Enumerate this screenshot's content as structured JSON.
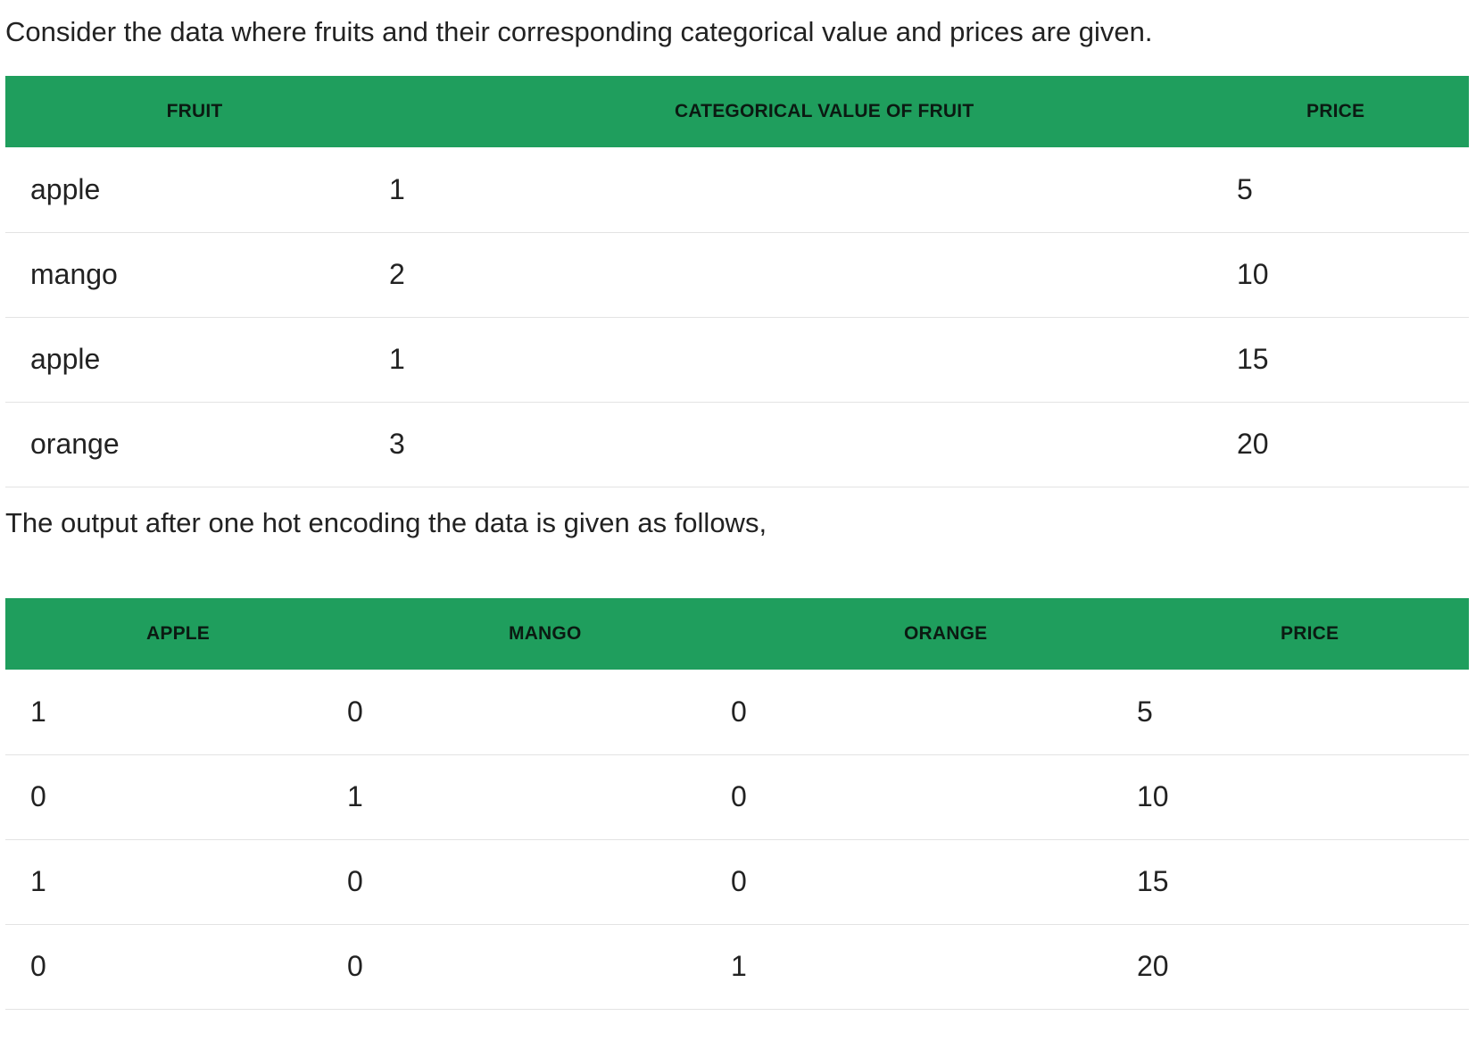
{
  "intro_text": "Consider the data where fruits and their corresponding categorical value and prices are given.",
  "table1": {
    "headers": [
      "FRUIT",
      "CATEGORICAL VALUE OF FRUIT",
      "PRICE"
    ],
    "rows": [
      [
        "apple",
        "1",
        "5"
      ],
      [
        "mango",
        "2",
        "10"
      ],
      [
        "apple",
        "1",
        "15"
      ],
      [
        "orange",
        "3",
        "20"
      ]
    ]
  },
  "output_text": "The output after one hot encoding the data is given as follows,",
  "table2": {
    "headers": [
      "APPLE",
      "MANGO",
      "ORANGE",
      "PRICE"
    ],
    "rows": [
      [
        "1",
        "0",
        "0",
        "5"
      ],
      [
        "0",
        "1",
        "0",
        "10"
      ],
      [
        "1",
        "0",
        "0",
        "15"
      ],
      [
        "0",
        "0",
        "1",
        "20"
      ]
    ]
  },
  "colors": {
    "header_bg": "#1f9e5d",
    "header_text": "#0b1a12",
    "body_text": "#222222",
    "row_divider": "#e3e3e3"
  }
}
